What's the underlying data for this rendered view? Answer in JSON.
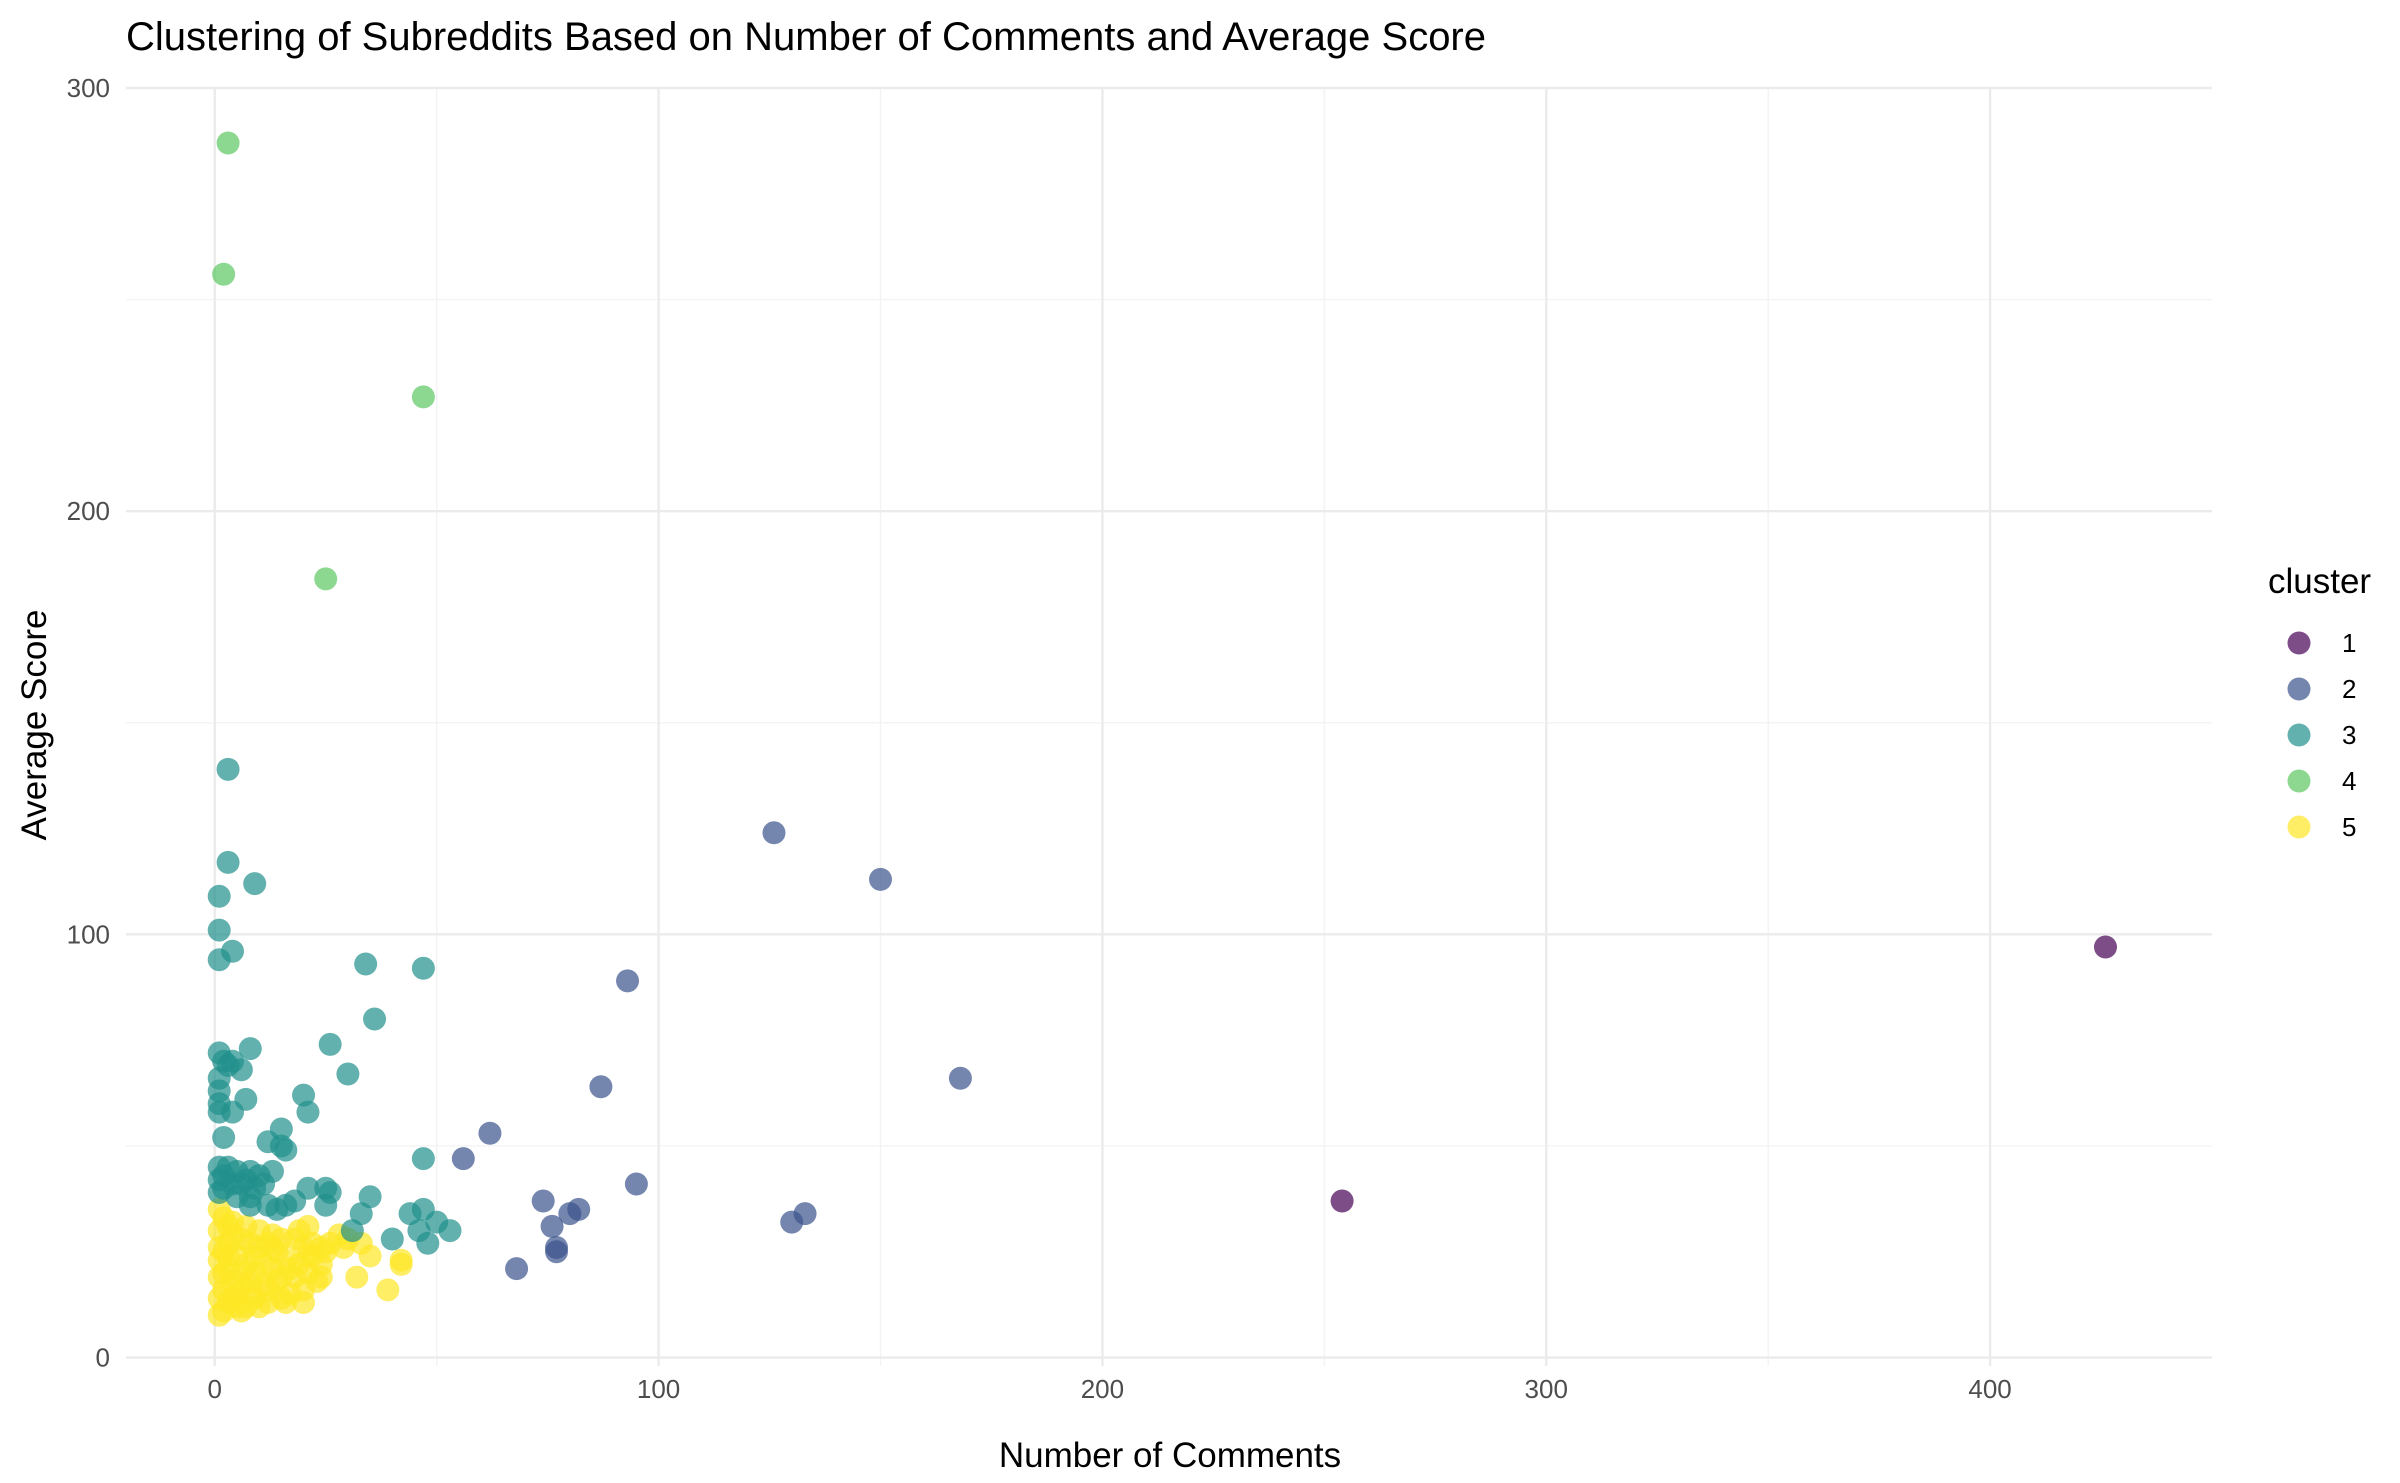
{
  "chart_data": {
    "type": "scatter",
    "title": "Clustering of Subreddits Based on Number of Comments and Average Score",
    "xlabel": "Number of Comments",
    "ylabel": "Average Score",
    "xlim": [
      -20,
      450
    ],
    "ylim": [
      -2,
      300
    ],
    "x_ticks": [
      0,
      100,
      200,
      300,
      400
    ],
    "y_ticks": [
      0,
      100,
      200,
      300
    ],
    "grid": true,
    "legend_title": "cluster",
    "legend_position": "right",
    "series": [
      {
        "name": "1",
        "color": "#440154",
        "points": [
          [
            426,
            97
          ],
          [
            254,
            37
          ]
        ]
      },
      {
        "name": "2",
        "color": "#3B528B",
        "points": [
          [
            126,
            124
          ],
          [
            150,
            113
          ],
          [
            93,
            89
          ],
          [
            168,
            66
          ],
          [
            87,
            64
          ],
          [
            62,
            53
          ],
          [
            56,
            47
          ],
          [
            95,
            41
          ],
          [
            74,
            37
          ],
          [
            82,
            35
          ],
          [
            80,
            34
          ],
          [
            133,
            34
          ],
          [
            130,
            32
          ],
          [
            76,
            31
          ],
          [
            77,
            26
          ],
          [
            77,
            25
          ],
          [
            68,
            21
          ]
        ]
      },
      {
        "name": "3",
        "color": "#21908C",
        "points": [
          [
            3,
            139
          ],
          [
            3,
            117
          ],
          [
            9,
            112
          ],
          [
            1,
            109
          ],
          [
            1,
            101
          ],
          [
            4,
            96
          ],
          [
            1,
            94
          ],
          [
            34,
            93
          ],
          [
            47,
            92
          ],
          [
            36,
            80
          ],
          [
            8,
            73
          ],
          [
            26,
            74
          ],
          [
            1,
            72
          ],
          [
            2,
            70
          ],
          [
            4,
            70
          ],
          [
            3,
            69
          ],
          [
            6,
            68
          ],
          [
            30,
            67
          ],
          [
            1,
            66
          ],
          [
            1,
            63
          ],
          [
            20,
            62
          ],
          [
            7,
            61
          ],
          [
            1,
            60
          ],
          [
            4,
            58
          ],
          [
            1,
            58
          ],
          [
            21,
            58
          ],
          [
            15,
            54
          ],
          [
            2,
            52
          ],
          [
            12,
            51
          ],
          [
            15,
            50
          ],
          [
            16,
            49
          ],
          [
            47,
            47
          ],
          [
            13,
            44
          ],
          [
            1,
            45
          ],
          [
            3,
            45
          ],
          [
            5,
            44
          ],
          [
            8,
            44
          ],
          [
            10,
            43
          ],
          [
            1,
            42
          ],
          [
            4,
            41
          ],
          [
            6,
            41
          ],
          [
            2,
            40
          ],
          [
            9,
            40
          ],
          [
            21,
            40
          ],
          [
            25,
            40
          ],
          [
            26,
            39
          ],
          [
            1,
            39
          ],
          [
            5,
            38
          ],
          [
            8,
            38
          ],
          [
            35,
            38
          ],
          [
            18,
            37
          ],
          [
            16,
            36
          ],
          [
            12,
            36
          ],
          [
            8,
            36
          ],
          [
            25,
            36
          ],
          [
            14,
            35
          ],
          [
            44,
            34
          ],
          [
            47,
            35
          ],
          [
            33,
            34
          ],
          [
            50,
            32
          ],
          [
            46,
            30
          ],
          [
            53,
            30
          ],
          [
            31,
            30
          ],
          [
            40,
            28
          ],
          [
            48,
            27
          ],
          [
            2,
            43
          ],
          [
            7,
            42
          ],
          [
            11,
            41
          ]
        ]
      },
      {
        "name": "4",
        "color": "#5DC863",
        "points": [
          [
            3,
            287
          ],
          [
            2,
            256
          ],
          [
            47,
            227
          ],
          [
            25,
            184
          ]
        ]
      },
      {
        "name": "5",
        "color": "#FDE725",
        "points": [
          [
            1,
            35
          ],
          [
            2,
            33
          ],
          [
            3,
            31
          ],
          [
            1,
            30
          ],
          [
            4,
            29
          ],
          [
            6,
            28
          ],
          [
            8,
            27
          ],
          [
            10,
            26
          ],
          [
            2,
            25
          ],
          [
            5,
            24
          ],
          [
            1,
            23
          ],
          [
            7,
            22
          ],
          [
            3,
            21
          ],
          [
            9,
            20
          ],
          [
            1,
            19
          ],
          [
            4,
            18
          ],
          [
            6,
            17
          ],
          [
            2,
            16
          ],
          [
            8,
            15
          ],
          [
            1,
            14
          ],
          [
            3,
            13
          ],
          [
            5,
            12
          ],
          [
            2,
            11
          ],
          [
            1,
            10
          ],
          [
            12,
            27
          ],
          [
            14,
            25
          ],
          [
            16,
            23
          ],
          [
            13,
            21
          ],
          [
            15,
            19
          ],
          [
            11,
            17
          ],
          [
            17,
            15
          ],
          [
            12,
            13
          ],
          [
            18,
            28
          ],
          [
            20,
            26
          ],
          [
            22,
            24
          ],
          [
            19,
            22
          ],
          [
            21,
            20
          ],
          [
            23,
            18
          ],
          [
            20,
            16
          ],
          [
            16,
            13
          ],
          [
            20,
            13
          ],
          [
            24,
            22
          ],
          [
            22,
            27
          ],
          [
            25,
            25
          ],
          [
            19,
            30
          ],
          [
            21,
            31
          ],
          [
            24,
            19
          ],
          [
            29,
            26
          ],
          [
            30,
            28
          ],
          [
            33,
            27
          ],
          [
            32,
            19
          ],
          [
            35,
            24
          ],
          [
            39,
            16
          ],
          [
            42,
            23
          ],
          [
            42,
            22
          ],
          [
            10,
            30
          ],
          [
            4,
            32
          ],
          [
            7,
            31
          ],
          [
            13,
            29
          ],
          [
            9,
            24
          ],
          [
            11,
            22
          ],
          [
            6,
            20
          ],
          [
            14,
            18
          ],
          [
            3,
            27
          ],
          [
            5,
            15
          ],
          [
            7,
            12
          ],
          [
            15,
            28
          ],
          [
            17,
            21
          ],
          [
            9,
            14
          ],
          [
            26,
            27
          ],
          [
            28,
            29
          ],
          [
            18,
            19
          ],
          [
            12,
            16
          ],
          [
            2,
            20
          ],
          [
            1,
            26
          ],
          [
            3,
            24
          ],
          [
            4,
            14
          ],
          [
            6,
            11
          ],
          [
            8,
            18
          ],
          [
            10,
            12
          ],
          [
            13,
            26
          ],
          [
            15,
            14
          ],
          [
            21,
            24
          ],
          [
            24,
            26
          ]
        ]
      }
    ]
  }
}
